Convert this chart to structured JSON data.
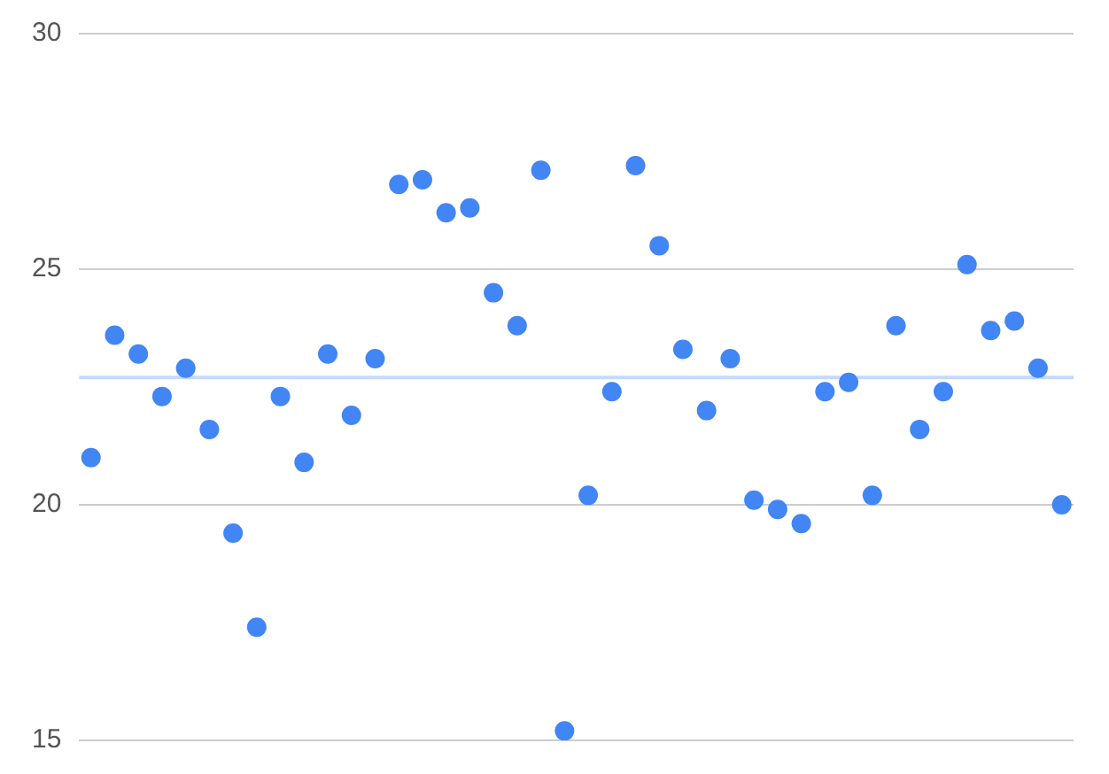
{
  "chart_data": {
    "type": "scatter",
    "categories": [
      null,
      null,
      null,
      null,
      null,
      null,
      null,
      null,
      null,
      null,
      null,
      null,
      null,
      null,
      null,
      null,
      null,
      null,
      null,
      null,
      null,
      null,
      null,
      null,
      null,
      null,
      null,
      null,
      null,
      null,
      null,
      null,
      null,
      null,
      null,
      null,
      null,
      null,
      null,
      null,
      null,
      null
    ],
    "series": [
      {
        "color": "#4285f4",
        "values": [
          21.0,
          23.6,
          23.2,
          22.3,
          22.9,
          21.6,
          19.4,
          17.4,
          22.3,
          20.9,
          23.2,
          21.9,
          23.1,
          26.8,
          26.9,
          26.2,
          26.3,
          24.5,
          23.8,
          27.1,
          15.2,
          20.2,
          22.4,
          27.2,
          25.5,
          23.3,
          22.0,
          23.1,
          20.1,
          19.9,
          19.6,
          22.4,
          22.6,
          20.2,
          23.8,
          21.6,
          22.4,
          25.1,
          23.7,
          23.9,
          22.9,
          20.0
        ]
      }
    ],
    "ylim": [
      15,
      30
    ],
    "yticks": [
      15,
      20,
      25,
      30
    ],
    "grid": "y",
    "marker": "circle",
    "tick_labels": "y",
    "ref_lines": [
      {
        "axis": "y",
        "value": 22.7,
        "color": "#c6d9fc"
      }
    ]
  }
}
